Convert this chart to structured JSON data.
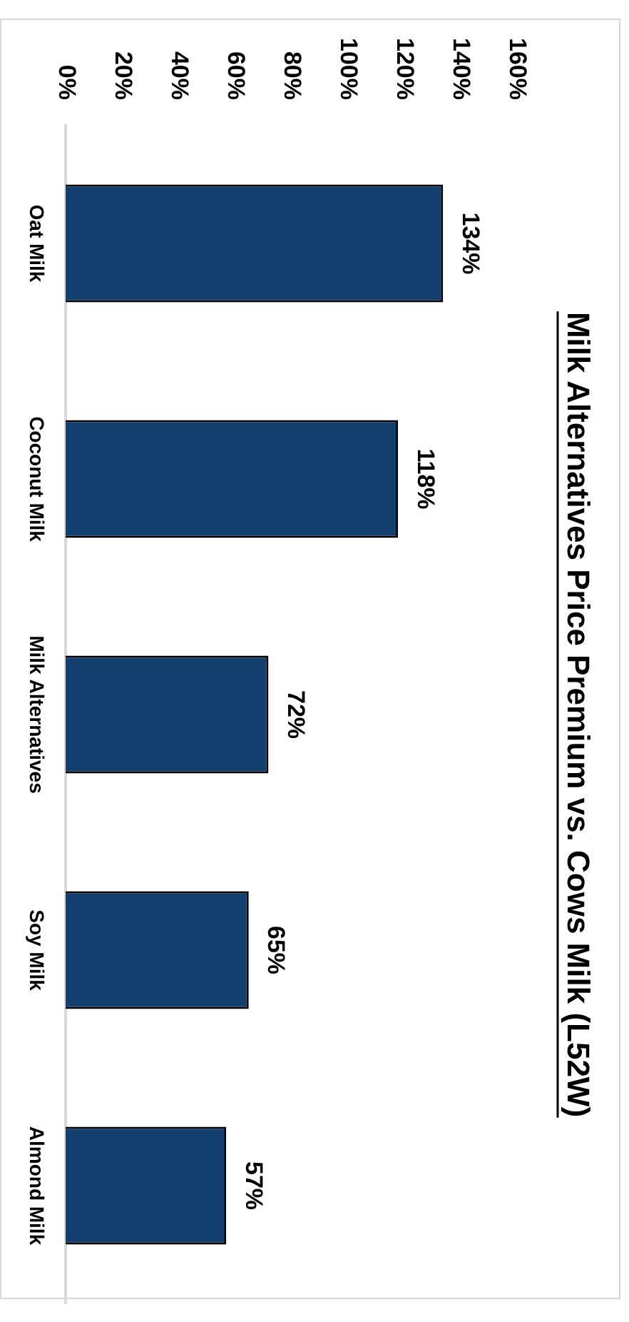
{
  "chart_data": {
    "type": "bar",
    "orientation": "horizontal",
    "title": "Milk Alternatives Price Premium vs. Cows Milk (L52W)",
    "categories": [
      "Oat Milk",
      "Coconut Milk",
      "Milk Alternatives",
      "Soy Milk",
      "Almond Milk"
    ],
    "values": [
      134,
      118,
      72,
      65,
      57
    ],
    "value_labels": [
      "134%",
      "118%",
      "72%",
      "65%",
      "57%"
    ],
    "color": "#133f6e",
    "xlim": [
      0,
      160
    ],
    "xticks": [
      {
        "value": 0,
        "label": "0%"
      },
      {
        "value": 20,
        "label": "20%"
      },
      {
        "value": 40,
        "label": "40%"
      },
      {
        "value": 60,
        "label": "60%"
      },
      {
        "value": 80,
        "label": "80%"
      },
      {
        "value": 100,
        "label": "100%"
      },
      {
        "value": 120,
        "label": "120%"
      },
      {
        "value": 140,
        "label": "140%"
      },
      {
        "value": 160,
        "label": "160%"
      }
    ],
    "grid": false,
    "legend": false
  }
}
